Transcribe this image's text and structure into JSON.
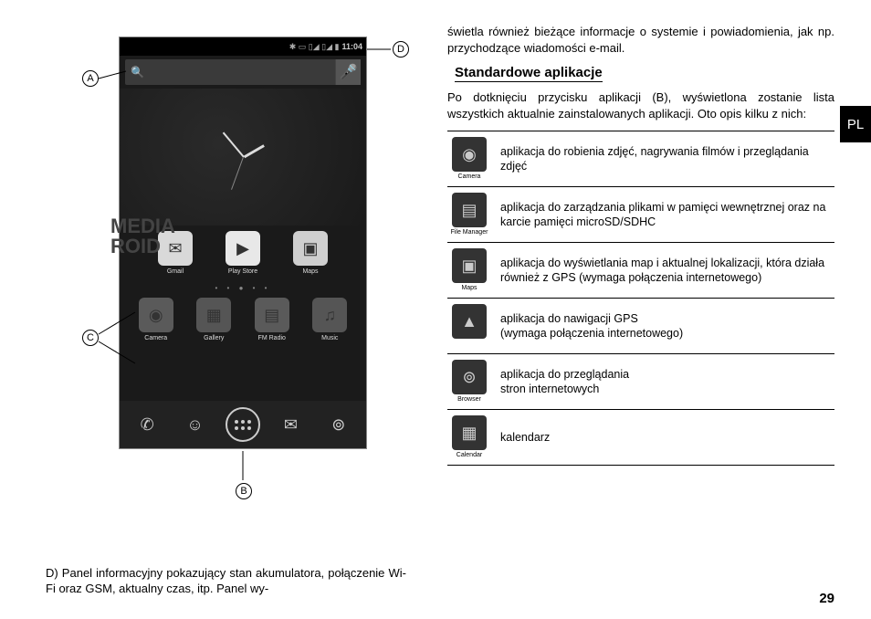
{
  "lang_tab": "PL",
  "page_number": "29",
  "statusbar": {
    "icons": "✱ ▭ ▯◢ ▯◢ ▮",
    "time": "11:04"
  },
  "wallpaper": {
    "line1": "MEDIA",
    "line2": "ROID"
  },
  "home_apps_row1": [
    {
      "label": "Gmail",
      "glyph": "✉",
      "bg": "#d9d9d9"
    },
    {
      "label": "Play Store",
      "glyph": "▶",
      "bg": "#e8e8e8"
    },
    {
      "label": "Maps",
      "glyph": "▣",
      "bg": "#cfcfcf"
    }
  ],
  "home_apps_row2": [
    {
      "label": "Camera",
      "glyph": "◉",
      "bg": "#5a5a5a"
    },
    {
      "label": "Gallery",
      "glyph": "▦",
      "bg": "#555555"
    },
    {
      "label": "FM Radio",
      "glyph": "▤",
      "bg": "#5a5a5a"
    },
    {
      "label": "Music",
      "glyph": "♫",
      "bg": "#555555"
    }
  ],
  "dock": [
    {
      "name": "phone",
      "glyph": "✆"
    },
    {
      "name": "contacts",
      "glyph": "☺"
    },
    {
      "name": "apps",
      "glyph": ""
    },
    {
      "name": "messaging",
      "glyph": "✉"
    },
    {
      "name": "browser",
      "glyph": "⊚"
    }
  ],
  "callouts": {
    "A": "A",
    "B": "B",
    "C": "C",
    "D": "D"
  },
  "text_d": "D) Panel informacyjny pokazujący stan akumulatora, połączenie Wi-Fi oraz GSM, aktualny czas, itp. Panel wy-",
  "right_intro": "świetla również bieżące informacje o systemie i powiadomienia, jak np. przychodzące wiadomości e-mail.",
  "section_heading": "Standardowe aplikacje",
  "section_intro": "Po dotknięciu przycisku aplikacji (B), wyświetlona zostanie lista wszystkich aktualnie zainstalowanych aplikacji. Oto opis kilku z nich:",
  "app_table": [
    {
      "icon_label": "Camera",
      "glyph": "◉",
      "desc": "aplikacja do robienia zdjęć, nagrywania filmów i przeglądania zdjęć"
    },
    {
      "icon_label": "File Manager",
      "glyph": "▤",
      "desc": "aplikacja do zarządzania plikami w pamięci wewnętrznej oraz na karcie pamięci microSD/SDHC"
    },
    {
      "icon_label": "Maps",
      "glyph": "▣",
      "desc": "aplikacja do wyświetlania map i aktualnej lokalizacji, która działa również z GPS (wymaga połączenia internetowego)"
    },
    {
      "icon_label": "",
      "glyph": "▲",
      "desc": "aplikacja do nawigacji GPS\n(wymaga połączenia internetowego)"
    },
    {
      "icon_label": "Browser",
      "glyph": "⊚",
      "desc": "aplikacja do przeglądania\nstron internetowych"
    },
    {
      "icon_label": "Calendar",
      "glyph": "▦",
      "desc": "kalendarz"
    }
  ]
}
